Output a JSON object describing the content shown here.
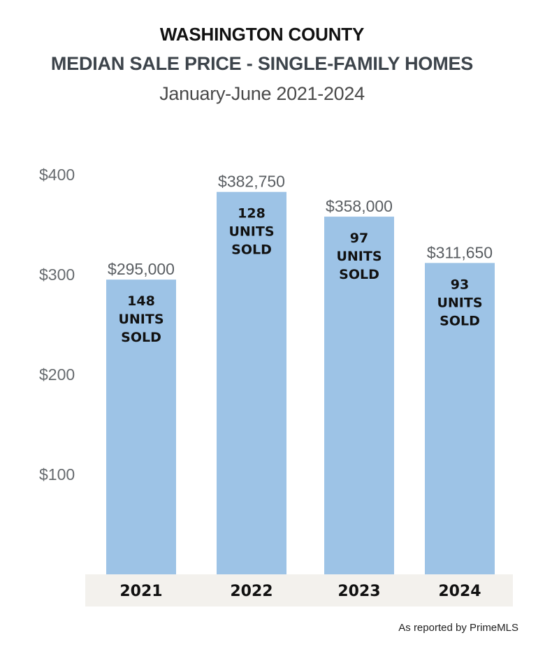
{
  "header": {
    "title": "WASHINGTON COUNTY",
    "subtitle": "MEDIAN SALE PRICE - SINGLE-FAMILY HOMES",
    "period": "January-June 2021-2024"
  },
  "footer": {
    "source": "As reported by PrimeMLS"
  },
  "colors": {
    "bar": "#9dc3e6",
    "axis_band": "#f3f1ed"
  },
  "chart_data": {
    "type": "bar",
    "title": "MEDIAN SALE PRICE - SINGLE-FAMILY HOMES",
    "categories": [
      "2021",
      "2022",
      "2023",
      "2024"
    ],
    "values": [
      295000,
      382750,
      358000,
      311650
    ],
    "value_labels": [
      "$295,000",
      "$382,750",
      "$358,000",
      "$311,650"
    ],
    "units_sold": [
      148,
      128,
      97,
      93
    ],
    "inner_label_lines": [
      "UNITS",
      "SOLD"
    ],
    "yticks": [
      100000,
      200000,
      300000,
      400000
    ],
    "ytick_labels": [
      "$100",
      "$200",
      "$300",
      "$400"
    ],
    "ylim": [
      0,
      400000
    ],
    "grid": false,
    "legend": "none"
  }
}
